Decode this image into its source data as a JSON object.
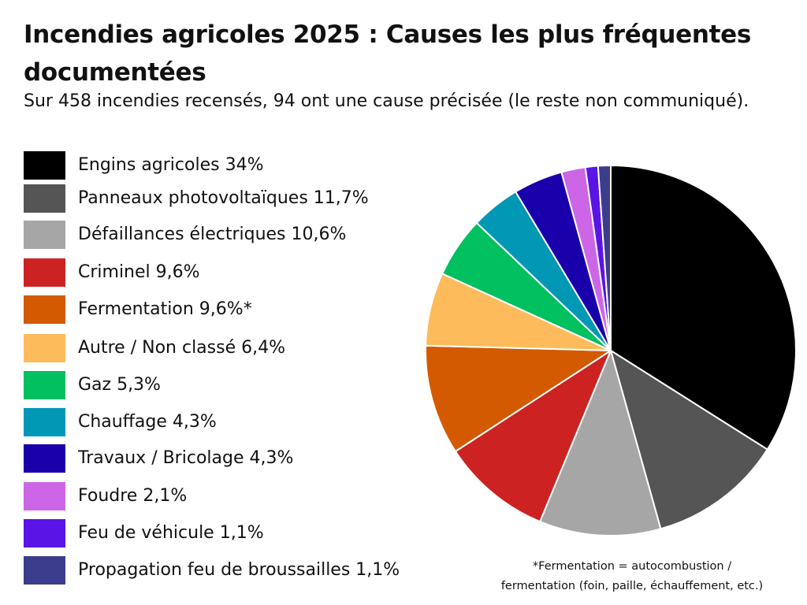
{
  "title": "Incendies agricoles 2025 : Causes les plus fréquentes documentées",
  "subtitle": "Sur 458 incendies recensés, 94 ont une cause précisée (le reste non communiqué).",
  "footnote": {
    "line1": "*Fermentation = autocombustion /",
    "line2": "fermentation (foin, paille, échauffement, etc.)"
  },
  "chart_data": {
    "type": "pie",
    "title": "Incendies agricoles 2025 : Causes les plus fréquentes documentées",
    "subtitle": "Sur 458 incendies recensés, 94 ont une cause précisée (le reste non communiqué).",
    "legend_position": "left",
    "slices": [
      {
        "label": "Engins agricoles 34%",
        "value": 34,
        "color": "#000000"
      },
      {
        "label": "Panneaux photovoltaïques 11,7%",
        "value": 11.7,
        "color": "#555555"
      },
      {
        "label": "Défaillances électriques 10,6%",
        "value": 10.6,
        "color": "#a6a6a6"
      },
      {
        "label": "Criminel 9,6%",
        "value": 9.6,
        "color": "#cc2222"
      },
      {
        "label": "Fermentation 9,6%*",
        "value": 9.6,
        "color": "#d35a00"
      },
      {
        "label": "Autre / Non classé 6,4%",
        "value": 6.4,
        "color": "#fdbb5c"
      },
      {
        "label": "Gaz 5,3%",
        "value": 5.3,
        "color": "#00c060"
      },
      {
        "label": "Chauffage 4,3%",
        "value": 4.3,
        "color": "#0098b5"
      },
      {
        "label": "Travaux / Bricolage 4,3%",
        "value": 4.3,
        "color": "#1a00aa"
      },
      {
        "label": "Foudre 2,1%",
        "value": 2.1,
        "color": "#cc66e6"
      },
      {
        "label": "Feu de véhicule 1,1%",
        "value": 1.1,
        "color": "#5a14e6"
      },
      {
        "label": "Propagation feu de broussailles 1,1%",
        "value": 1.1,
        "color": "#3c3c8c"
      }
    ]
  }
}
